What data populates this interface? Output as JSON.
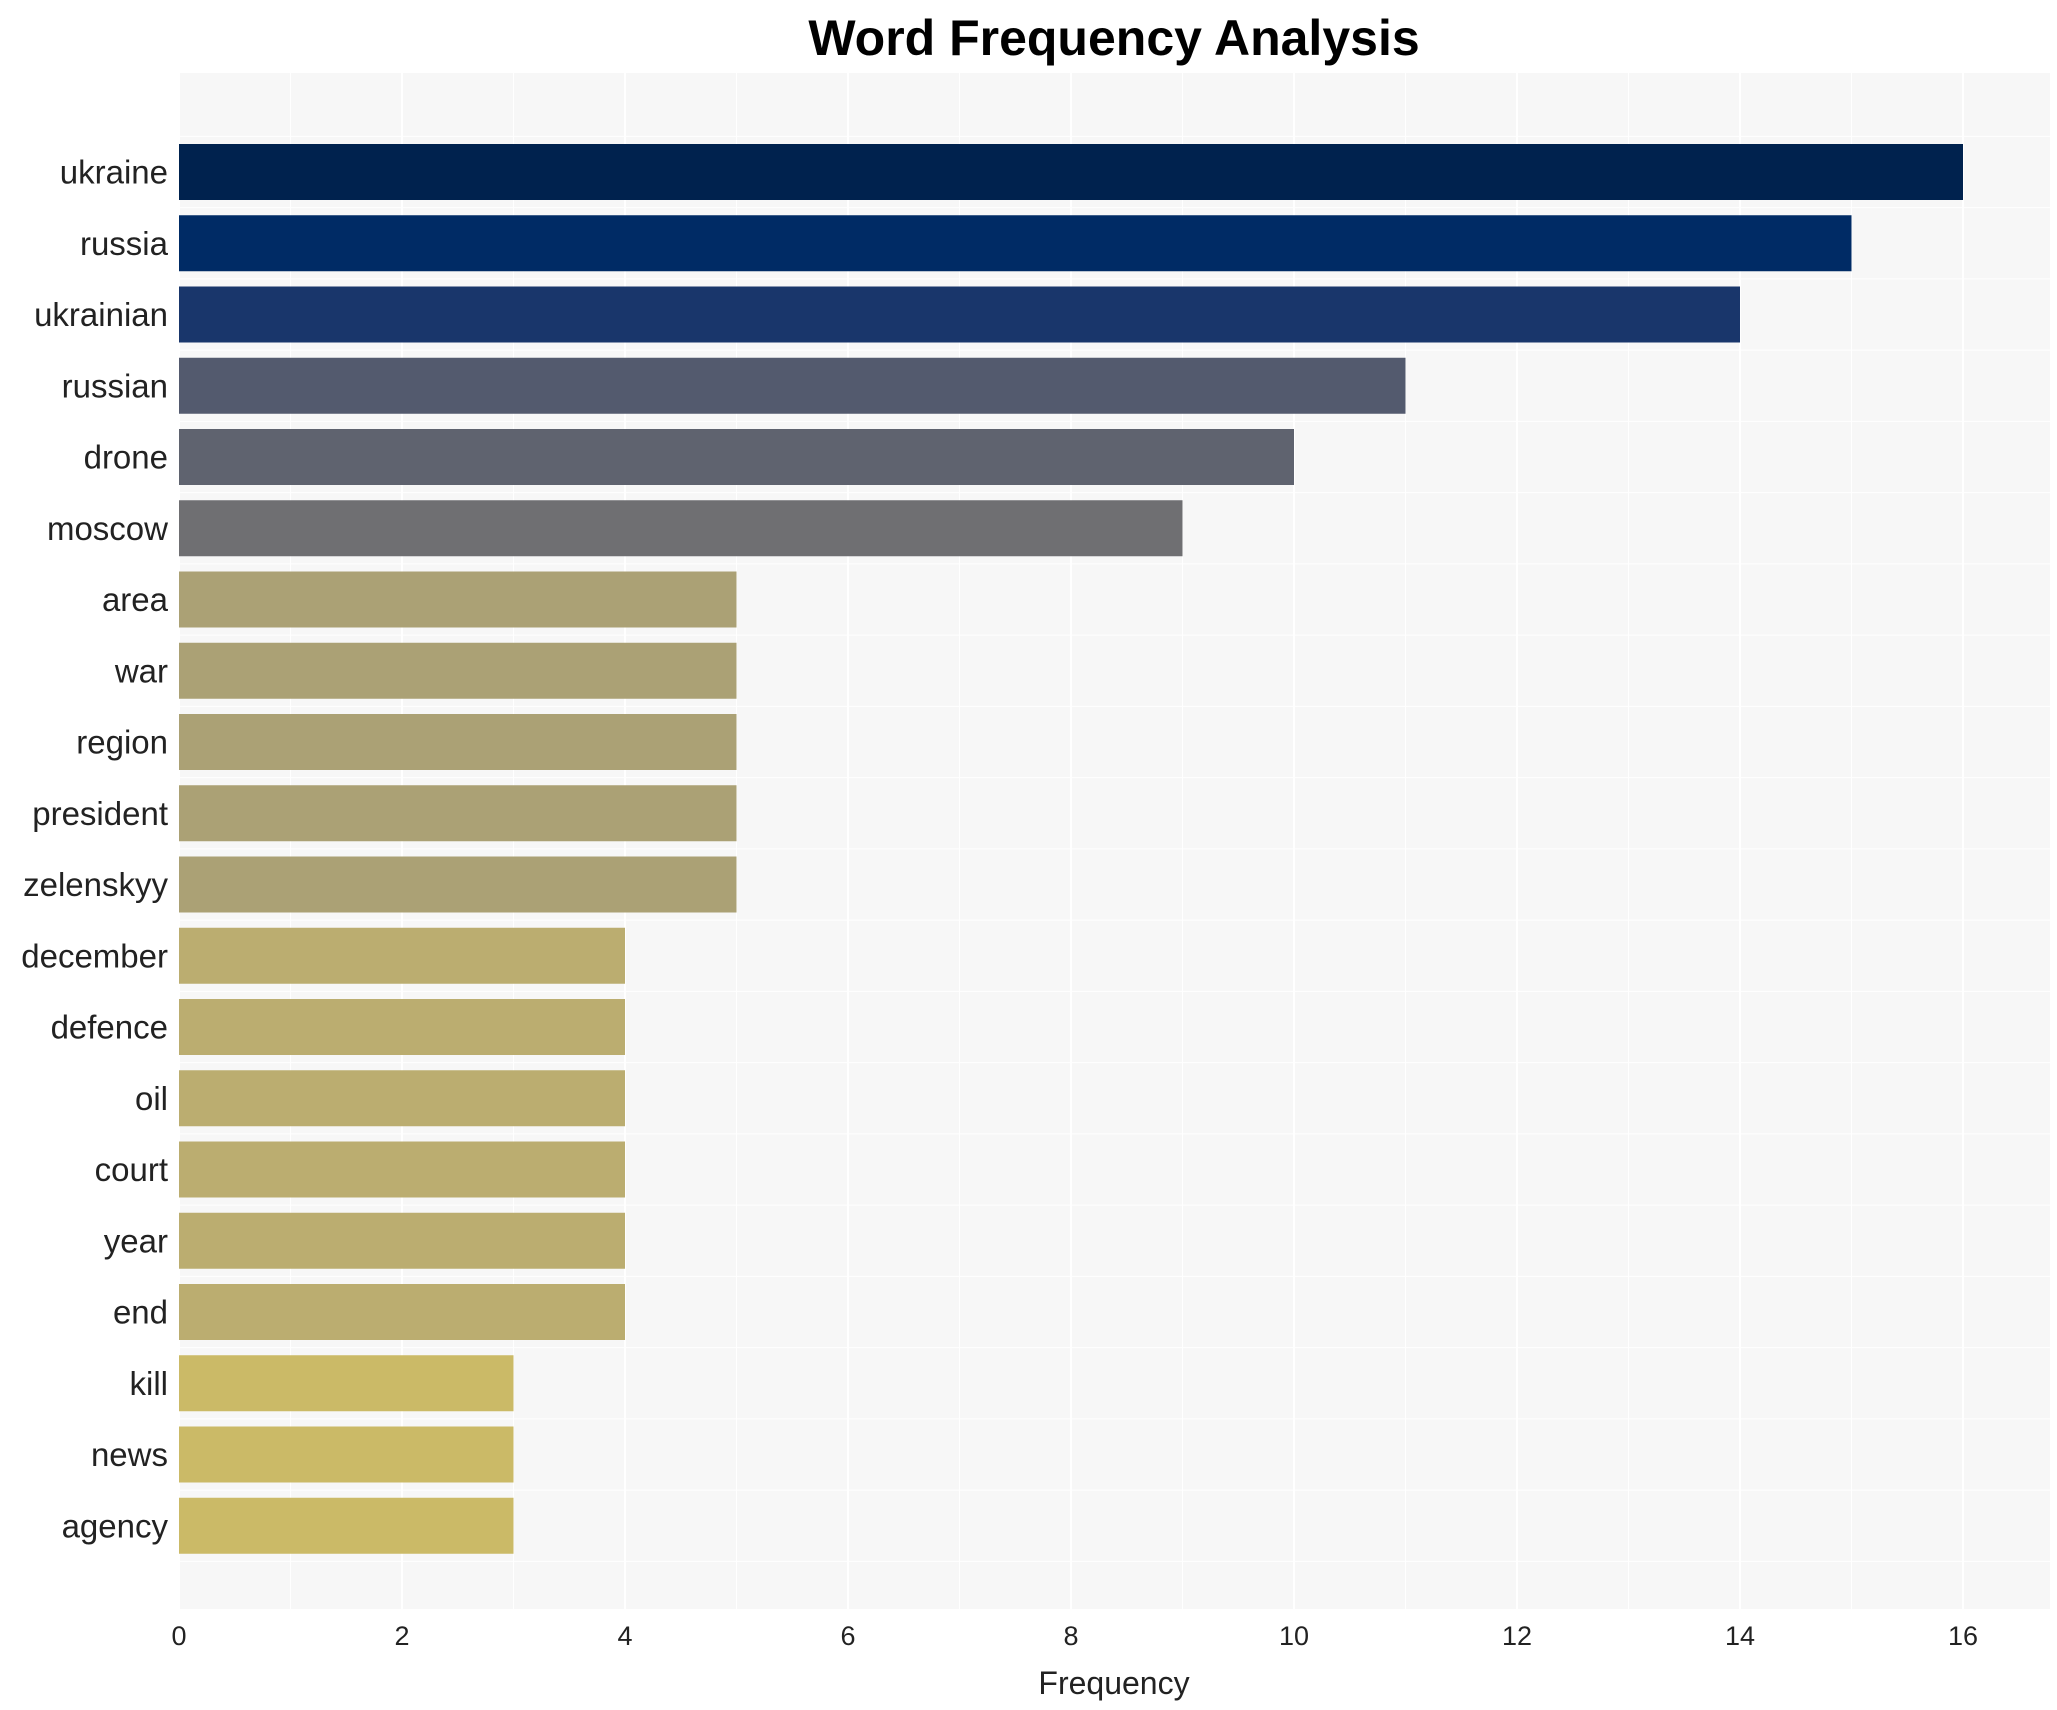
{
  "chart_data": {
    "type": "bar",
    "orientation": "horizontal",
    "title": "Word Frequency Analysis",
    "xlabel": "Frequency",
    "ylabel": "",
    "xlim": [
      0,
      16.8
    ],
    "xticks": [
      0,
      2,
      4,
      6,
      8,
      10,
      12,
      14,
      16
    ],
    "grid": true,
    "categories": [
      "ukraine",
      "russia",
      "ukrainian",
      "russian",
      "drone",
      "moscow",
      "area",
      "war",
      "region",
      "president",
      "zelenskyy",
      "december",
      "defence",
      "oil",
      "court",
      "year",
      "end",
      "kill",
      "news",
      "agency"
    ],
    "values": [
      16,
      15,
      14,
      11,
      10,
      9,
      5,
      5,
      5,
      5,
      5,
      4,
      4,
      4,
      4,
      4,
      4,
      3,
      3,
      3
    ],
    "colors": [
      "#00224e",
      "#002b65",
      "#19366b",
      "#535a6e",
      "#5f636f",
      "#6f6f72",
      "#aba175",
      "#aba175",
      "#aba175",
      "#aba175",
      "#aba175",
      "#bbad70",
      "#bbad70",
      "#bbad70",
      "#bbad70",
      "#bbad70",
      "#bbad70",
      "#cbba67",
      "#cbba67",
      "#cbba67"
    ]
  }
}
